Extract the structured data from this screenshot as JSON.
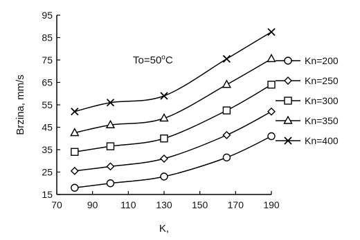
{
  "chart_data": {
    "type": "line",
    "title": "",
    "annotation": {
      "prefix": "To=50",
      "degree": "o",
      "suffix": "C"
    },
    "xlabel": "K,",
    "ylabel": "Brzina, mm/s",
    "x": [
      80,
      100,
      130,
      165,
      190
    ],
    "xlim": [
      70,
      190
    ],
    "ylim": [
      15,
      95
    ],
    "xticks": [
      "70",
      "90",
      "110",
      "130",
      "150",
      "170",
      "190"
    ],
    "yticks": [
      "15",
      "25",
      "35",
      "45",
      "55",
      "65",
      "75",
      "85",
      "95"
    ],
    "grid": false,
    "legend_position": "right",
    "series": [
      {
        "name": "Kn=200",
        "marker": "circle",
        "values": [
          18,
          20,
          23,
          31.5,
          41
        ]
      },
      {
        "name": "Kn=250",
        "marker": "diamond",
        "values": [
          25.5,
          27.5,
          31,
          41.5,
          52
        ]
      },
      {
        "name": "Kn=300",
        "marker": "square",
        "values": [
          34,
          36.5,
          40,
          52.5,
          64
        ]
      },
      {
        "name": "Kn=350",
        "marker": "triangle",
        "values": [
          42.5,
          46,
          49,
          64,
          75.5
        ]
      },
      {
        "name": "Kn=400",
        "marker": "x",
        "values": [
          52,
          56,
          59,
          75.5,
          87.5
        ]
      }
    ]
  }
}
